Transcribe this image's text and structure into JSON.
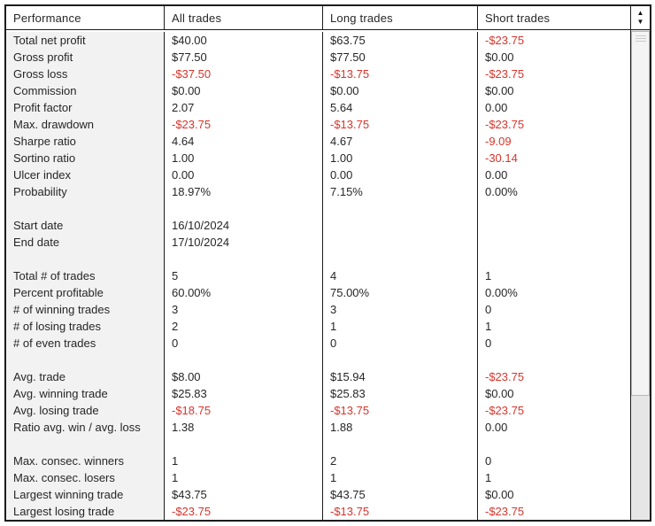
{
  "colors": {
    "negative": "#d9342b",
    "text": "#262626",
    "border": "#1c1c1c",
    "label_column_bg": "#f2f2f2"
  },
  "header": {
    "columns": [
      "Performance",
      "All trades",
      "Long trades",
      "Short trades"
    ]
  },
  "scrollbar": {
    "up_arrow": "▲",
    "down_arrow": "▼"
  },
  "table": {
    "sections": [
      {
        "rows": [
          {
            "label": "Total net profit",
            "values": [
              "$40.00",
              "$63.75",
              "-$23.75"
            ]
          },
          {
            "label": "Gross profit",
            "values": [
              "$77.50",
              "$77.50",
              "$0.00"
            ]
          },
          {
            "label": "Gross loss",
            "values": [
              "-$37.50",
              "-$13.75",
              "-$23.75"
            ]
          },
          {
            "label": "Commission",
            "values": [
              "$0.00",
              "$0.00",
              "$0.00"
            ]
          },
          {
            "label": "Profit factor",
            "values": [
              "2.07",
              "5.64",
              "0.00"
            ]
          },
          {
            "label": "Max. drawdown",
            "values": [
              "-$23.75",
              "-$13.75",
              "-$23.75"
            ]
          },
          {
            "label": "Sharpe ratio",
            "values": [
              "4.64",
              "4.67",
              "-9.09"
            ]
          },
          {
            "label": "Sortino ratio",
            "values": [
              "1.00",
              "1.00",
              "-30.14"
            ]
          },
          {
            "label": "Ulcer index",
            "values": [
              "0.00",
              "0.00",
              "0.00"
            ]
          },
          {
            "label": "Probability",
            "values": [
              "18.97%",
              "7.15%",
              "0.00%"
            ]
          }
        ]
      },
      {
        "rows": [
          {
            "label": "Start date",
            "values": [
              "16/10/2024",
              "",
              ""
            ]
          },
          {
            "label": "End date",
            "values": [
              "17/10/2024",
              "",
              ""
            ]
          }
        ]
      },
      {
        "rows": [
          {
            "label": "Total # of trades",
            "values": [
              "5",
              "4",
              "1"
            ]
          },
          {
            "label": "Percent profitable",
            "values": [
              "60.00%",
              "75.00%",
              "0.00%"
            ]
          },
          {
            "label": "# of winning trades",
            "values": [
              "3",
              "3",
              "0"
            ]
          },
          {
            "label": "# of losing trades",
            "values": [
              "2",
              "1",
              "1"
            ]
          },
          {
            "label": "# of even trades",
            "values": [
              "0",
              "0",
              "0"
            ]
          }
        ]
      },
      {
        "rows": [
          {
            "label": "Avg. trade",
            "values": [
              "$8.00",
              "$15.94",
              "-$23.75"
            ]
          },
          {
            "label": "Avg. winning trade",
            "values": [
              "$25.83",
              "$25.83",
              "$0.00"
            ]
          },
          {
            "label": "Avg. losing trade",
            "values": [
              "-$18.75",
              "-$13.75",
              "-$23.75"
            ]
          },
          {
            "label": "Ratio avg. win / avg. loss",
            "values": [
              "1.38",
              "1.88",
              "0.00"
            ]
          }
        ]
      },
      {
        "rows": [
          {
            "label": "Max. consec. winners",
            "values": [
              "1",
              "2",
              "0"
            ]
          },
          {
            "label": "Max. consec. losers",
            "values": [
              "1",
              "1",
              "1"
            ]
          },
          {
            "label": "Largest winning trade",
            "values": [
              "$43.75",
              "$43.75",
              "$0.00"
            ]
          },
          {
            "label": "Largest losing trade",
            "values": [
              "-$23.75",
              "-$13.75",
              "-$23.75"
            ]
          }
        ]
      }
    ]
  }
}
